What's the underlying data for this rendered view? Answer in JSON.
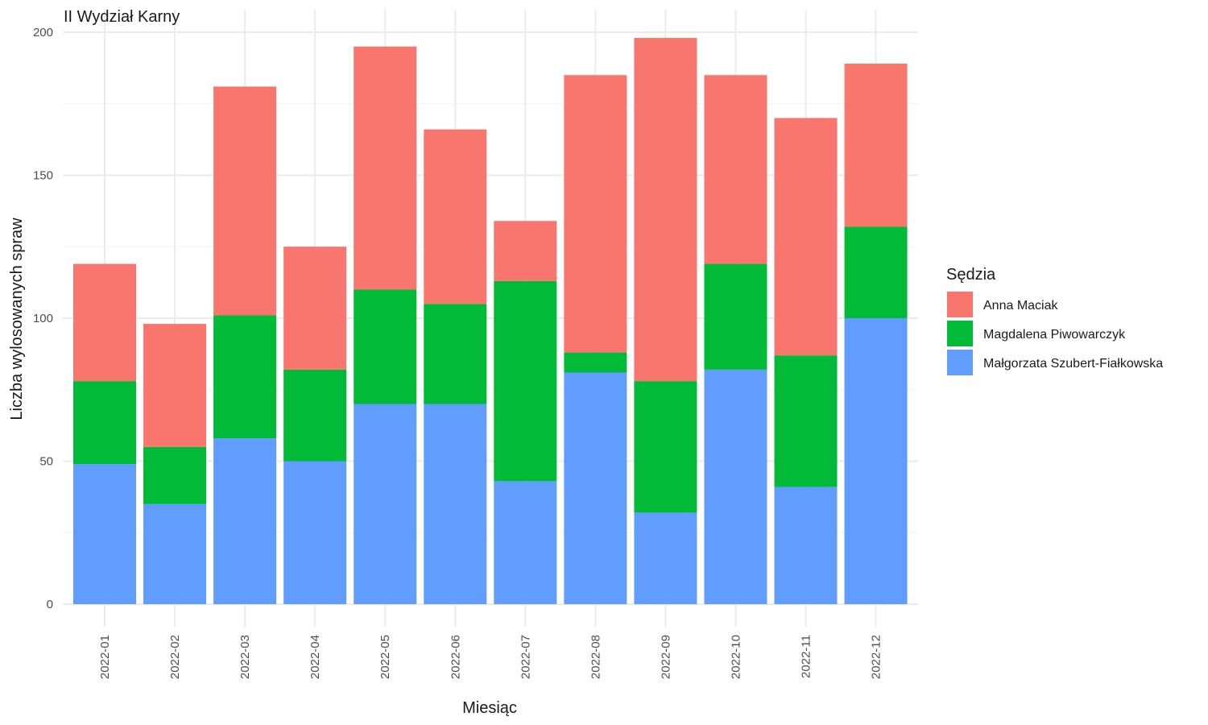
{
  "chart_data": {
    "type": "bar",
    "stacked": true,
    "title": "II Wydział Karny",
    "xlabel": "Miesiąc",
    "ylabel": "Liczba wylosowanych spraw",
    "ylim": [
      0,
      200
    ],
    "yticks": [
      0,
      50,
      100,
      150,
      200
    ],
    "grid": true,
    "legend": {
      "title": "Sędzia",
      "position": "right"
    },
    "categories": [
      "2022-01",
      "2022-02",
      "2022-03",
      "2022-04",
      "2022-05",
      "2022-06",
      "2022-07",
      "2022-08",
      "2022-09",
      "2022-10",
      "2022-11",
      "2022-12"
    ],
    "series": [
      {
        "name": "Małgorzata Szubert-Fiałkowska",
        "color": "#619CFF",
        "values": [
          49,
          35,
          58,
          50,
          70,
          70,
          43,
          81,
          32,
          82,
          41,
          100
        ]
      },
      {
        "name": "Magdalena Piwowarczyk",
        "color": "#00BA38",
        "values": [
          29,
          20,
          43,
          32,
          40,
          35,
          70,
          7,
          46,
          37,
          46,
          32
        ]
      },
      {
        "name": "Anna Maciak",
        "color": "#F8766D",
        "values": [
          41,
          43,
          80,
          43,
          85,
          61,
          21,
          97,
          120,
          66,
          83,
          57
        ]
      }
    ],
    "legend_order": [
      "Anna Maciak",
      "Magdalena Piwowarczyk",
      "Małgorzata Szubert-Fiałkowska"
    ]
  }
}
